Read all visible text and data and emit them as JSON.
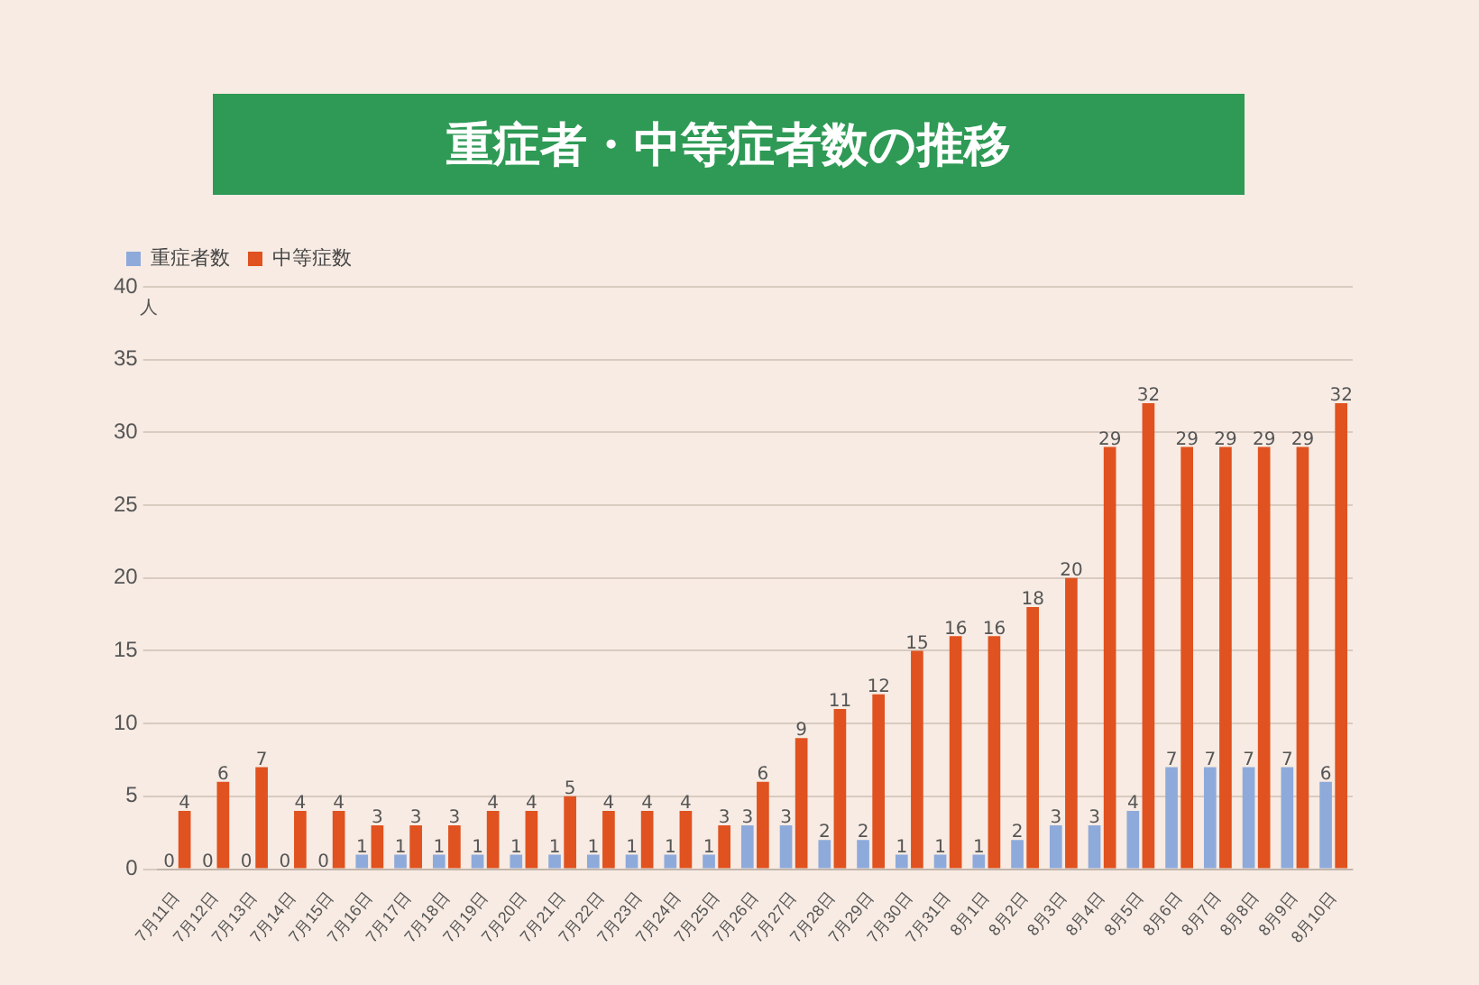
{
  "chart_data": {
    "type": "bar",
    "title": "重症者・中等症者数の推移",
    "ylabel": "人",
    "categories": [
      "7月11日",
      "7月12日",
      "7月13日",
      "7月14日",
      "7月15日",
      "7月16日",
      "7月17日",
      "7月18日",
      "7月19日",
      "7月20日",
      "7月21日",
      "7月22日",
      "7月23日",
      "7月24日",
      "7月25日",
      "7月26日",
      "7月27日",
      "7月28日",
      "7月29日",
      "7月30日",
      "7月31日",
      "8月1日",
      "8月2日",
      "8月3日",
      "8月4日",
      "8月5日",
      "8月6日",
      "8月7日",
      "8月8日",
      "8月9日",
      "8月10日"
    ],
    "series": [
      {
        "name": "重症者数",
        "color": "#8eaadb",
        "values": [
          0,
          0,
          0,
          0,
          0,
          1,
          1,
          1,
          1,
          1,
          1,
          1,
          1,
          1,
          1,
          3,
          3,
          2,
          2,
          1,
          1,
          1,
          2,
          3,
          3,
          4,
          7,
          7,
          7,
          7,
          6
        ]
      },
      {
        "name": "中等症数",
        "color": "#e0521f",
        "values": [
          4,
          6,
          7,
          4,
          4,
          3,
          3,
          3,
          4,
          4,
          5,
          4,
          4,
          4,
          3,
          6,
          9,
          11,
          12,
          15,
          16,
          16,
          18,
          20,
          29,
          32,
          29,
          29,
          29,
          29,
          32
        ]
      }
    ],
    "ylim": [
      0,
      40
    ],
    "yticks": [
      0,
      5,
      10,
      15,
      20,
      25,
      30,
      35,
      40
    ],
    "grid": "y",
    "legend": "top left",
    "data_labels": true
  }
}
